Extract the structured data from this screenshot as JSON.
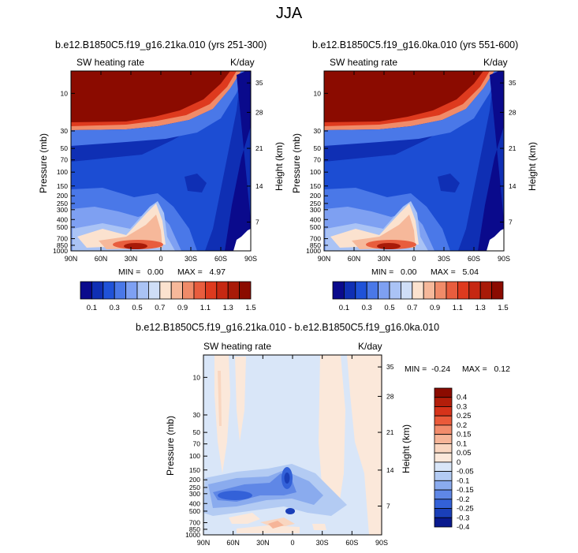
{
  "figure": {
    "title": "JJA"
  },
  "panels": [
    {
      "id": "left",
      "title": "b.e12.B1850C5.f19_g16.21ka.010 (yrs 251-300)",
      "left_label": "SW heating rate",
      "right_label": "K/day",
      "min_label": "MIN =   0.00",
      "max_label": "MAX =   4.97"
    },
    {
      "id": "right",
      "title": "b.e12.B1850C5.f19_g16.0ka.010 (yrs 551-600)",
      "left_label": "SW heating rate",
      "right_label": "K/day",
      "min_label": "MIN =   0.00",
      "max_label": "MAX =   5.04"
    },
    {
      "id": "diff",
      "title": "b.e12.B1850C5.f19_g16.21ka.010 - b.e12.B1850C5.f19_g16.0ka.010",
      "left_label": "SW heating rate",
      "right_label": "K/day",
      "min_label": "MIN =  -0.24",
      "max_label": "MAX =   0.12"
    }
  ],
  "axes": {
    "ylabel": "Pressure (mb)",
    "ylabel_right": "Height (km)",
    "x_ticks": [
      "90N",
      "60N",
      "30N",
      "0",
      "30S",
      "60S",
      "90S"
    ],
    "pressure_ticks": [
      "10",
      "30",
      "50",
      "70",
      "100",
      "150",
      "200",
      "250",
      "300",
      "400",
      "500",
      "700",
      "850",
      "1000"
    ],
    "height_ticks": [
      "35",
      "28",
      "21",
      "14",
      "7"
    ]
  },
  "chart_data": [
    {
      "type": "heatmap",
      "title": "b.e12.B1850C5.f19_g16.21ka.010 (yrs 251-300)",
      "variable": "SW heating rate",
      "units": "K/day",
      "x": [
        "90N",
        "60N",
        "30N",
        "0",
        "30S",
        "60S",
        "90S"
      ],
      "y_pressure_mb": [
        10,
        30,
        50,
        70,
        100,
        150,
        200,
        250,
        300,
        400,
        500,
        700,
        850,
        1000
      ],
      "height_km": [
        35,
        28,
        21,
        14,
        7
      ],
      "colorbar_levels": [
        0.1,
        0.2,
        0.3,
        0.4,
        0.5,
        0.6,
        0.7,
        0.8,
        0.9,
        1.0,
        1.1,
        1.2,
        1.3,
        1.4,
        1.5
      ],
      "min": 0.0,
      "max": 4.97
    },
    {
      "type": "heatmap",
      "title": "b.e12.B1850C5.f19_g16.0ka.010 (yrs 551-600)",
      "variable": "SW heating rate",
      "units": "K/day",
      "x": [
        "90N",
        "60N",
        "30N",
        "0",
        "30S",
        "60S",
        "90S"
      ],
      "y_pressure_mb": [
        10,
        30,
        50,
        70,
        100,
        150,
        200,
        250,
        300,
        400,
        500,
        700,
        850,
        1000
      ],
      "height_km": [
        35,
        28,
        21,
        14,
        7
      ],
      "colorbar_levels": [
        0.1,
        0.2,
        0.3,
        0.4,
        0.5,
        0.6,
        0.7,
        0.8,
        0.9,
        1.0,
        1.1,
        1.2,
        1.3,
        1.4,
        1.5
      ],
      "min": 0.0,
      "max": 5.04
    },
    {
      "type": "heatmap",
      "title": "b.e12.B1850C5.f19_g16.21ka.010 - b.e12.B1850C5.f19_g16.0ka.010",
      "variable": "SW heating rate",
      "units": "K/day",
      "x": [
        "90N",
        "60N",
        "30N",
        "0",
        "30S",
        "60S",
        "90S"
      ],
      "y_pressure_mb": [
        10,
        30,
        50,
        70,
        100,
        150,
        200,
        250,
        300,
        400,
        500,
        700,
        850,
        1000
      ],
      "height_km": [
        35,
        28,
        21,
        14,
        7
      ],
      "colorbar_levels": [
        -0.4,
        -0.3,
        -0.25,
        -0.2,
        -0.15,
        -0.1,
        -0.05,
        0,
        0.05,
        0.1,
        0.15,
        0.2,
        0.25,
        0.3,
        0.4
      ],
      "min": -0.24,
      "max": 0.12
    }
  ],
  "colorbars": {
    "abs": {
      "labels": [
        "0.1",
        "0.3",
        "0.5",
        "0.7",
        "0.9",
        "1.1",
        "1.3",
        "1.5"
      ],
      "colors": [
        "#0a0a8c",
        "#0f2fb4",
        "#1f52d8",
        "#4a78e8",
        "#7ea0f2",
        "#aac3f5",
        "#cfdef7",
        "#fbe2cf",
        "#f6b89a",
        "#f08b69",
        "#e85d3e",
        "#de3a1e",
        "#c62812",
        "#a81a08",
        "#8b0b00"
      ]
    },
    "diff": {
      "labels": [
        "0.4",
        "0.3",
        "0.25",
        "0.2",
        "0.15",
        "0.1",
        "0.05",
        "0",
        "-0.05",
        "-0.1",
        "-0.15",
        "-0.2",
        "-0.25",
        "-0.3",
        "-0.4"
      ],
      "colors": [
        "#8b0b00",
        "#b31e0a",
        "#d6331a",
        "#ea5a3a",
        "#f28c6c",
        "#f6b598",
        "#f9d6c0",
        "#fbe8da",
        "#d9e6f8",
        "#b3cbf3",
        "#8aabee",
        "#5f87e6",
        "#3361d8",
        "#1a3fb8",
        "#0a1a8e"
      ]
    }
  }
}
